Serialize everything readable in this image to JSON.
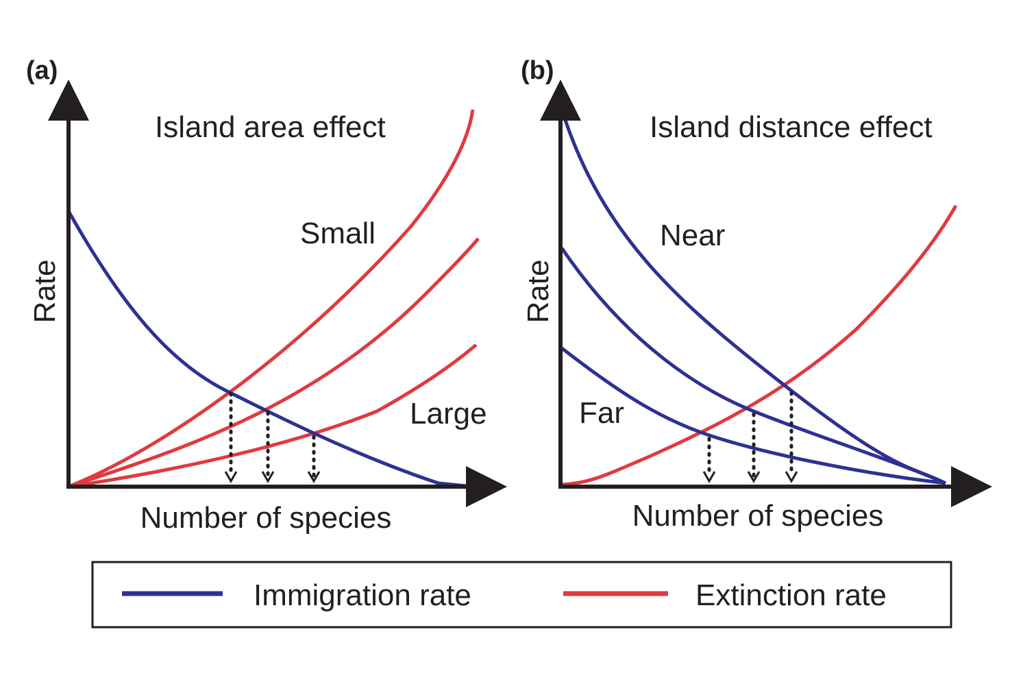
{
  "panels": [
    {
      "label": "(a)",
      "title": "Island area effect",
      "y_label": "Rate",
      "x_label": "Number of species",
      "curve_labels": [
        "Small",
        "Large"
      ]
    },
    {
      "label": "(b)",
      "title": "Island distance effect",
      "y_label": "Rate",
      "x_label": "Number of species",
      "curve_labels": [
        "Near",
        "Far"
      ]
    }
  ],
  "legend": {
    "items": [
      "Immigration rate",
      "Extinction rate"
    ]
  }
}
